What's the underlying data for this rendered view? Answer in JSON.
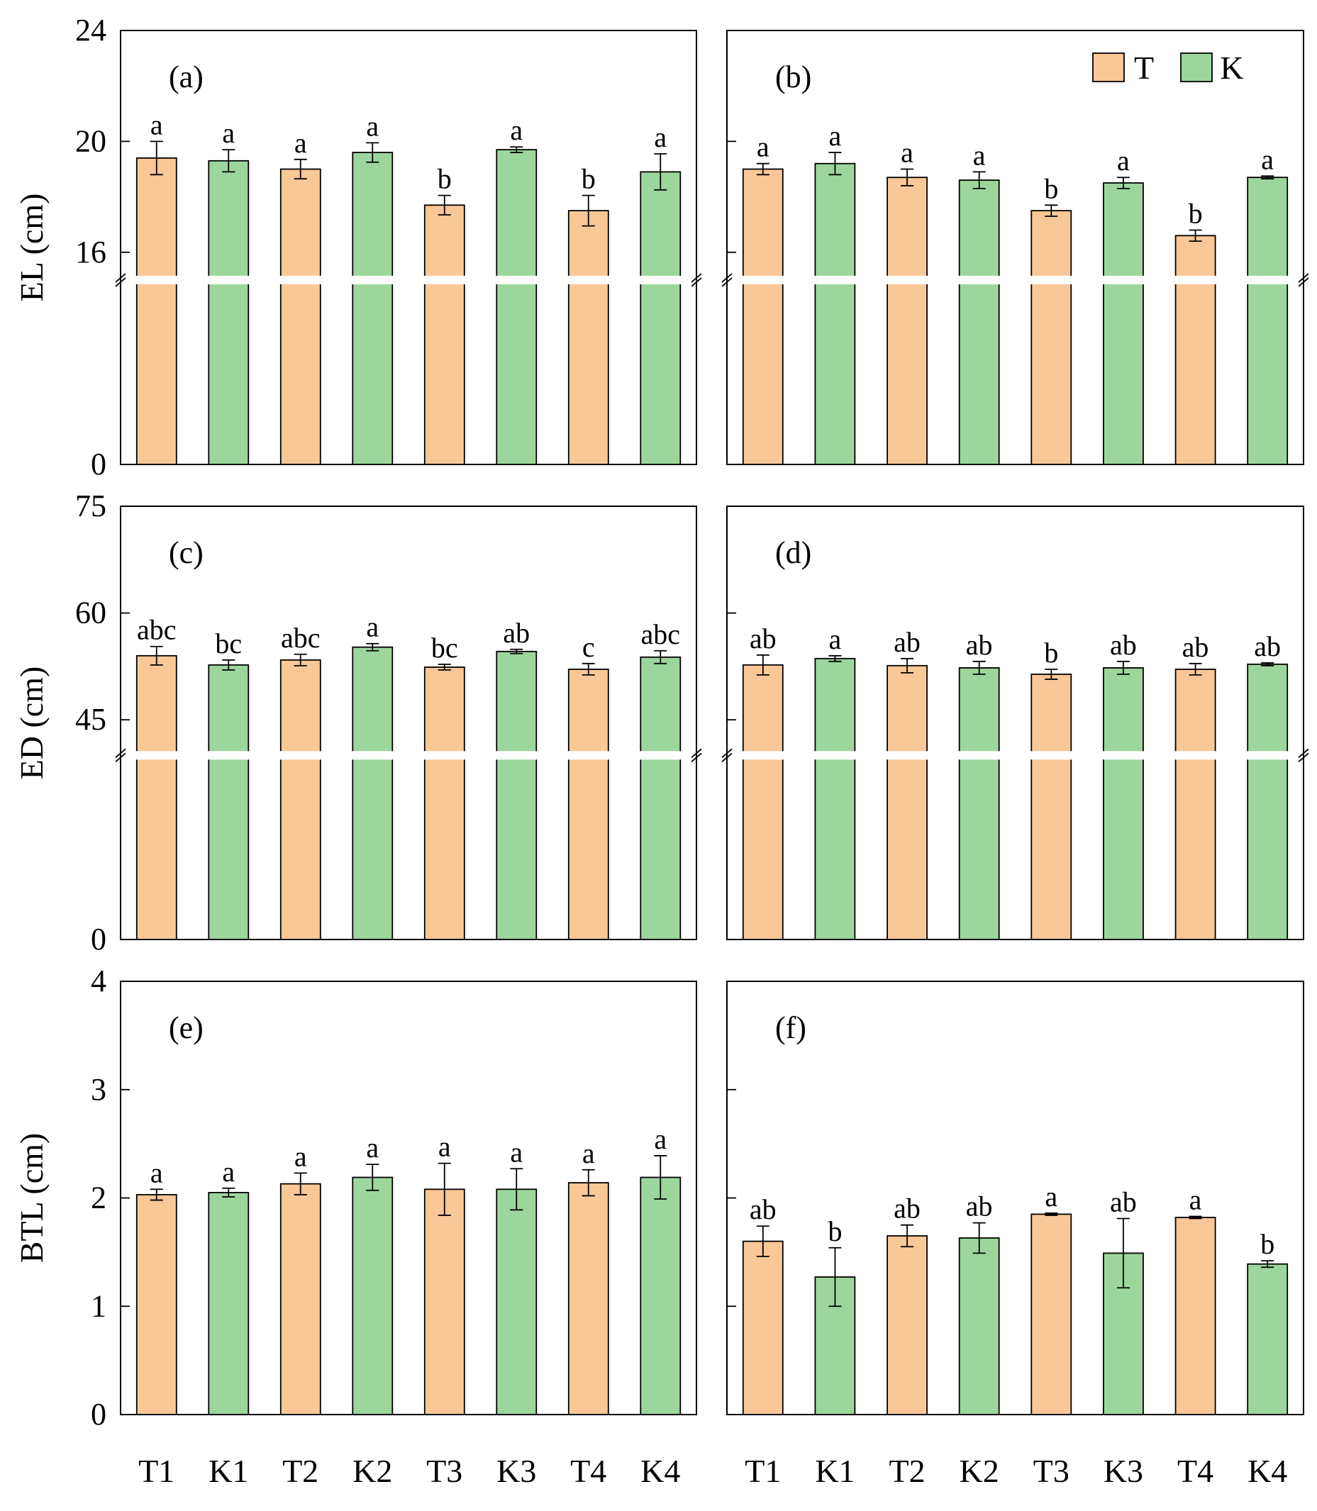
{
  "colors": {
    "T": "#FAC797",
    "K": "#9DD69C"
  },
  "legend": {
    "items": [
      {
        "label": "T",
        "color": "#FAC797"
      },
      {
        "label": "K",
        "color": "#9DD69C"
      }
    ]
  },
  "categories": [
    "T1",
    "K1",
    "T2",
    "K2",
    "T3",
    "K3",
    "T4",
    "K4"
  ],
  "chart_data": [
    {
      "type": "bar",
      "panel_label": "(a)",
      "ylabel": "EL (cm)",
      "axis_break": true,
      "ylim": [
        0,
        24
      ],
      "lower_range": [
        0,
        15
      ],
      "upper_range": [
        15,
        24
      ],
      "yticks": [
        0,
        16,
        20,
        24
      ],
      "ytick_labels": [
        "0",
        "16",
        "20",
        "24"
      ],
      "categories": [
        "T1",
        "K1",
        "T2",
        "K2",
        "T3",
        "K3",
        "T4",
        "K4"
      ],
      "values": [
        19.4,
        19.3,
        19.0,
        19.6,
        17.7,
        19.7,
        17.5,
        18.9
      ],
      "errors": [
        0.6,
        0.4,
        0.35,
        0.35,
        0.35,
        0.1,
        0.55,
        0.65
      ],
      "letters": [
        "a",
        "a",
        "a",
        "a",
        "b",
        "a",
        "b",
        "a"
      ],
      "legend": false
    },
    {
      "type": "bar",
      "panel_label": "(b)",
      "ylabel": "",
      "axis_break": true,
      "ylim": [
        0,
        24
      ],
      "lower_range": [
        0,
        15
      ],
      "upper_range": [
        15,
        24
      ],
      "yticks": [
        0,
        16,
        20,
        24
      ],
      "ytick_labels": [
        "",
        "",
        "",
        ""
      ],
      "categories": [
        "T1",
        "K1",
        "T2",
        "K2",
        "T3",
        "K3",
        "T4",
        "K4"
      ],
      "values": [
        19.0,
        19.2,
        18.7,
        18.6,
        17.5,
        18.5,
        16.6,
        18.7
      ],
      "errors": [
        0.2,
        0.4,
        0.3,
        0.3,
        0.2,
        0.2,
        0.2,
        0.05
      ],
      "letters": [
        "a",
        "a",
        "a",
        "a",
        "b",
        "a",
        "b",
        "a"
      ],
      "legend": true
    },
    {
      "type": "bar",
      "panel_label": "(c)",
      "ylabel": "ED (cm)",
      "axis_break": true,
      "ylim": [
        0,
        75
      ],
      "lower_range": [
        0,
        40
      ],
      "upper_range": [
        40,
        75
      ],
      "yticks": [
        0,
        45,
        60,
        75
      ],
      "ytick_labels": [
        "0",
        "45",
        "60",
        "75"
      ],
      "categories": [
        "T1",
        "K1",
        "T2",
        "K2",
        "T3",
        "K3",
        "T4",
        "K4"
      ],
      "values": [
        54.0,
        52.7,
        53.4,
        55.2,
        52.4,
        54.6,
        52.1,
        53.8
      ],
      "errors": [
        1.3,
        0.7,
        0.8,
        0.5,
        0.4,
        0.3,
        0.8,
        0.9
      ],
      "letters": [
        "abc",
        "bc",
        "abc",
        "a",
        "bc",
        "ab",
        "c",
        "abc"
      ],
      "legend": false
    },
    {
      "type": "bar",
      "panel_label": "(d)",
      "ylabel": "",
      "axis_break": true,
      "ylim": [
        0,
        75
      ],
      "lower_range": [
        0,
        40
      ],
      "upper_range": [
        40,
        75
      ],
      "yticks": [
        0,
        45,
        60,
        75
      ],
      "ytick_labels": [
        "",
        "",
        "",
        ""
      ],
      "categories": [
        "T1",
        "K1",
        "T2",
        "K2",
        "T3",
        "K3",
        "T4",
        "K4"
      ],
      "values": [
        52.7,
        53.6,
        52.6,
        52.3,
        51.4,
        52.3,
        52.1,
        52.8
      ],
      "errors": [
        1.4,
        0.4,
        1.0,
        0.9,
        0.7,
        0.9,
        0.8,
        0.2
      ],
      "letters": [
        "ab",
        "a",
        "ab",
        "ab",
        "b",
        "ab",
        "ab",
        "ab"
      ],
      "legend": false
    },
    {
      "type": "bar",
      "panel_label": "(e)",
      "ylabel": "BTL (cm)",
      "axis_break": false,
      "ylim": [
        0,
        4
      ],
      "yticks": [
        0,
        1,
        2,
        3,
        4
      ],
      "ytick_labels": [
        "0",
        "1",
        "2",
        "3",
        "4"
      ],
      "categories": [
        "T1",
        "K1",
        "T2",
        "K2",
        "T3",
        "K3",
        "T4",
        "K4"
      ],
      "values": [
        2.03,
        2.05,
        2.13,
        2.19,
        2.08,
        2.08,
        2.14,
        2.19
      ],
      "errors": [
        0.05,
        0.04,
        0.1,
        0.12,
        0.24,
        0.19,
        0.12,
        0.2
      ],
      "letters": [
        "a",
        "a",
        "a",
        "a",
        "a",
        "a",
        "a",
        "a"
      ],
      "legend": false
    },
    {
      "type": "bar",
      "panel_label": "(f)",
      "ylabel": "",
      "axis_break": false,
      "ylim": [
        0,
        4
      ],
      "yticks": [
        0,
        1,
        2,
        3,
        4
      ],
      "ytick_labels": [
        "",
        "",
        "",
        "",
        ""
      ],
      "categories": [
        "T1",
        "K1",
        "T2",
        "K2",
        "T3",
        "K3",
        "T4",
        "K4"
      ],
      "values": [
        1.6,
        1.27,
        1.65,
        1.63,
        1.85,
        1.49,
        1.82,
        1.39
      ],
      "errors": [
        0.14,
        0.27,
        0.1,
        0.14,
        0.01,
        0.32,
        0.01,
        0.03
      ],
      "letters": [
        "ab",
        "b",
        "ab",
        "ab",
        "a",
        "ab",
        "a",
        "b"
      ],
      "legend": false
    }
  ]
}
